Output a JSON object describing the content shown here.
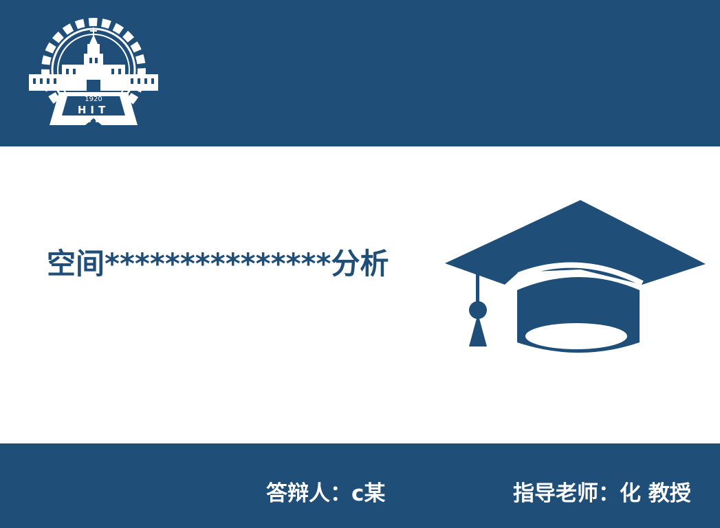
{
  "slide": {
    "title": "空间***************分析"
  },
  "logo": {
    "icon": "university-emblem-icon",
    "year": "1920",
    "abbr": "HIT"
  },
  "footer": {
    "defender": "答辩人：c某",
    "advisor": "指导老师：化 教授"
  },
  "colors": {
    "primary": "#1f4e79",
    "background": "#ffffff",
    "footer_text": "#ffffff"
  },
  "icons": {
    "main": "graduation-cap-icon"
  }
}
